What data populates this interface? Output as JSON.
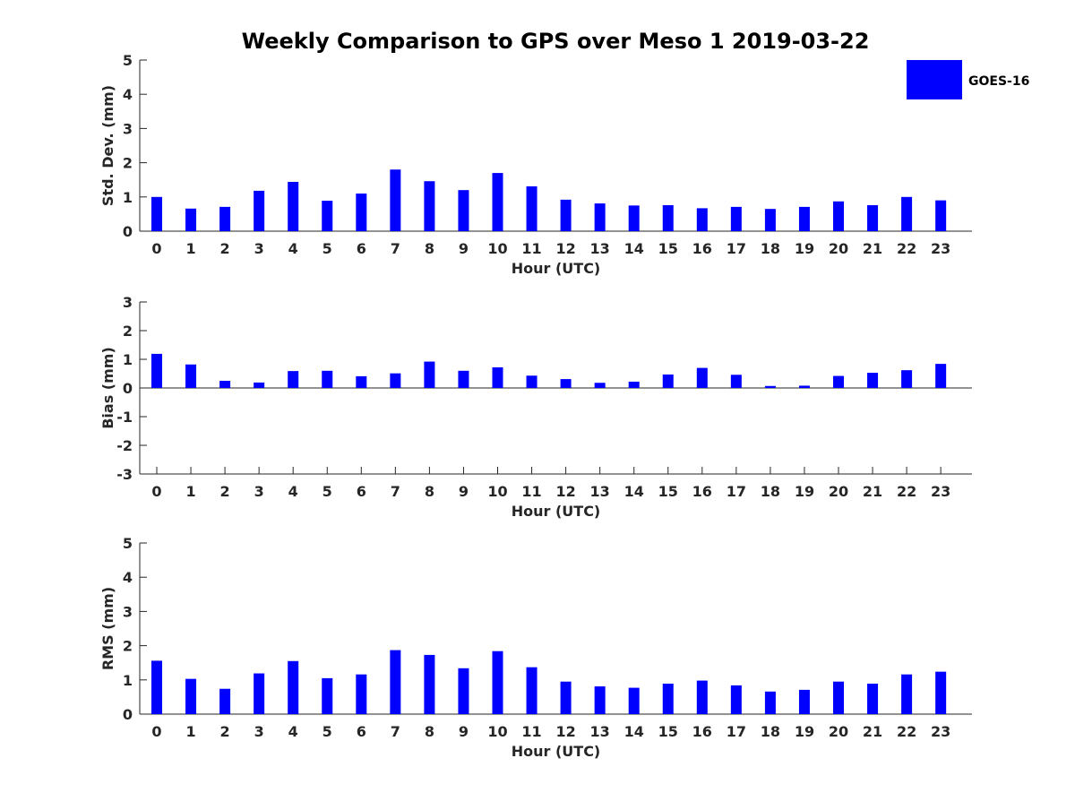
{
  "title": "Weekly Comparison to GPS over Meso 1 2019-03-22",
  "legend": {
    "label": "GOES-16",
    "color": "#0000ff"
  },
  "chart_data": [
    {
      "type": "bar",
      "series_name": "GOES-16",
      "xlabel": "Hour (UTC)",
      "ylabel": "Std. Dev. (mm)",
      "ylim": [
        0,
        5
      ],
      "yticks": [
        0,
        1,
        2,
        3,
        4,
        5
      ],
      "categories": [
        "0",
        "1",
        "2",
        "3",
        "4",
        "5",
        "6",
        "7",
        "8",
        "9",
        "10",
        "11",
        "12",
        "13",
        "14",
        "15",
        "16",
        "17",
        "18",
        "19",
        "20",
        "21",
        "22",
        "23"
      ],
      "values": [
        1.0,
        0.66,
        0.71,
        1.18,
        1.44,
        0.89,
        1.1,
        1.8,
        1.46,
        1.2,
        1.7,
        1.31,
        0.92,
        0.81,
        0.75,
        0.76,
        0.67,
        0.71,
        0.65,
        0.71,
        0.87,
        0.76,
        1.0,
        0.9
      ]
    },
    {
      "type": "bar",
      "series_name": "GOES-16",
      "xlabel": "Hour (UTC)",
      "ylabel": "Bias (mm)",
      "ylim": [
        -3,
        3
      ],
      "yticks": [
        -3,
        -2,
        -1,
        0,
        1,
        2,
        3
      ],
      "categories": [
        "0",
        "1",
        "2",
        "3",
        "4",
        "5",
        "6",
        "7",
        "8",
        "9",
        "10",
        "11",
        "12",
        "13",
        "14",
        "15",
        "16",
        "17",
        "18",
        "19",
        "20",
        "21",
        "22",
        "23"
      ],
      "values": [
        1.19,
        0.82,
        0.25,
        0.19,
        0.59,
        0.6,
        0.41,
        0.51,
        0.92,
        0.6,
        0.72,
        0.43,
        0.31,
        0.18,
        0.22,
        0.47,
        0.7,
        0.46,
        0.07,
        0.08,
        0.42,
        0.53,
        0.62,
        0.84
      ]
    },
    {
      "type": "bar",
      "series_name": "GOES-16",
      "xlabel": "Hour (UTC)",
      "ylabel": "RMS (mm)",
      "ylim": [
        0,
        5
      ],
      "yticks": [
        0,
        1,
        2,
        3,
        4,
        5
      ],
      "categories": [
        "0",
        "1",
        "2",
        "3",
        "4",
        "5",
        "6",
        "7",
        "8",
        "9",
        "10",
        "11",
        "12",
        "13",
        "14",
        "15",
        "16",
        "17",
        "18",
        "19",
        "20",
        "21",
        "22",
        "23"
      ],
      "values": [
        1.56,
        1.03,
        0.74,
        1.19,
        1.55,
        1.05,
        1.16,
        1.87,
        1.73,
        1.34,
        1.84,
        1.37,
        0.95,
        0.81,
        0.77,
        0.89,
        0.98,
        0.84,
        0.66,
        0.71,
        0.95,
        0.89,
        1.16,
        1.24
      ]
    }
  ]
}
